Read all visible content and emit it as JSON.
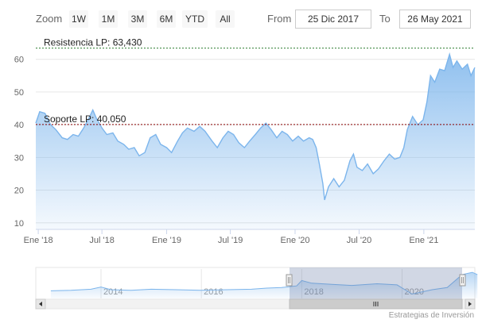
{
  "toolbar": {
    "zoom_label": "Zoom",
    "buttons": [
      "1W",
      "1M",
      "3M",
      "6M",
      "YTD",
      "All"
    ],
    "from_label": "From",
    "from_value": "25 Dic 2017",
    "to_label": "To",
    "to_value": "26 May 2021"
  },
  "credits": "Estrategias de Inversión",
  "colors": {
    "line": "#7cb5ec",
    "resistance": "#2e7d32",
    "support": "#8b0000",
    "navigator_mask": "#667aa6"
  },
  "navigator": {
    "year_labels": [
      "2014",
      "2016",
      "2018",
      "2020"
    ],
    "series": [
      [
        2013.0,
        24
      ],
      [
        2013.4,
        25
      ],
      [
        2013.8,
        27
      ],
      [
        2014.0,
        31
      ],
      [
        2014.2,
        26
      ],
      [
        2014.6,
        25
      ],
      [
        2015.0,
        27
      ],
      [
        2015.5,
        26
      ],
      [
        2016.0,
        25
      ],
      [
        2016.5,
        26
      ],
      [
        2017.0,
        27
      ],
      [
        2017.3,
        29
      ],
      [
        2017.6,
        30
      ],
      [
        2017.9,
        33
      ],
      [
        2018.0,
        43
      ],
      [
        2018.2,
        38
      ],
      [
        2018.6,
        36
      ],
      [
        2019.0,
        34
      ],
      [
        2019.5,
        37
      ],
      [
        2019.9,
        35
      ],
      [
        2020.2,
        18
      ],
      [
        2020.6,
        26
      ],
      [
        2020.9,
        30
      ],
      [
        2021.1,
        46
      ],
      [
        2021.2,
        54
      ],
      [
        2021.4,
        58
      ],
      [
        2021.5,
        54
      ]
    ]
  },
  "chart_data": {
    "type": "area",
    "title": "",
    "xlabel": "",
    "ylabel": "",
    "x_ticks": [
      "Ene '18",
      "Jul '18",
      "Ene '19",
      "Jul '19",
      "Ene '20",
      "Jul '20",
      "Ene '21"
    ],
    "y_ticks": [
      10,
      20,
      30,
      40,
      50,
      60
    ],
    "ylim": [
      8,
      66
    ],
    "xlim": [
      "2017-12-25",
      "2021-05-26"
    ],
    "grid": true,
    "plot_lines": [
      {
        "label": "Resistencia LP: 63,430",
        "value": 63.43,
        "color": "#2e7d32"
      },
      {
        "label": "Soporte LP: 40,050",
        "value": 40.05,
        "color": "#8b0000"
      }
    ],
    "series": [
      {
        "values": [
          [
            "2017-12-25",
            40.5
          ],
          [
            "2018-01-05",
            44
          ],
          [
            "2018-01-20",
            43.5
          ],
          [
            "2018-02-05",
            40
          ],
          [
            "2018-02-20",
            38.5
          ],
          [
            "2018-03-10",
            36
          ],
          [
            "2018-03-25",
            35.5
          ],
          [
            "2018-04-10",
            37
          ],
          [
            "2018-04-25",
            36.5
          ],
          [
            "2018-05-10",
            39
          ],
          [
            "2018-05-25",
            42
          ],
          [
            "2018-06-05",
            44.5
          ],
          [
            "2018-06-15",
            42
          ],
          [
            "2018-07-01",
            39
          ],
          [
            "2018-07-15",
            37
          ],
          [
            "2018-08-01",
            37.5
          ],
          [
            "2018-08-15",
            35
          ],
          [
            "2018-09-01",
            34
          ],
          [
            "2018-09-15",
            32.5
          ],
          [
            "2018-10-01",
            33
          ],
          [
            "2018-10-15",
            30.5
          ],
          [
            "2018-10-31",
            31.5
          ],
          [
            "2018-11-15",
            36
          ],
          [
            "2018-12-01",
            37
          ],
          [
            "2018-12-15",
            34
          ],
          [
            "2019-01-01",
            33
          ],
          [
            "2019-01-15",
            31.5
          ],
          [
            "2019-02-01",
            35
          ],
          [
            "2019-02-15",
            37.5
          ],
          [
            "2019-03-01",
            39
          ],
          [
            "2019-03-20",
            38
          ],
          [
            "2019-04-05",
            39.5
          ],
          [
            "2019-04-20",
            38
          ],
          [
            "2019-05-10",
            35
          ],
          [
            "2019-05-25",
            33
          ],
          [
            "2019-06-10",
            36
          ],
          [
            "2019-06-25",
            38
          ],
          [
            "2019-07-10",
            37
          ],
          [
            "2019-07-25",
            34.5
          ],
          [
            "2019-08-10",
            33
          ],
          [
            "2019-08-25",
            35
          ],
          [
            "2019-09-10",
            37
          ],
          [
            "2019-09-25",
            39
          ],
          [
            "2019-10-10",
            40.5
          ],
          [
            "2019-10-25",
            38.5
          ],
          [
            "2019-11-10",
            36
          ],
          [
            "2019-11-25",
            38
          ],
          [
            "2019-12-10",
            37
          ],
          [
            "2019-12-25",
            35
          ],
          [
            "2020-01-10",
            36.5
          ],
          [
            "2020-01-25",
            35
          ],
          [
            "2020-02-10",
            36
          ],
          [
            "2020-02-20",
            35.5
          ],
          [
            "2020-03-01",
            33
          ],
          [
            "2020-03-10",
            28
          ],
          [
            "2020-03-20",
            22
          ],
          [
            "2020-03-25",
            17
          ],
          [
            "2020-04-05",
            21
          ],
          [
            "2020-04-20",
            23.5
          ],
          [
            "2020-05-05",
            21
          ],
          [
            "2020-05-20",
            23
          ],
          [
            "2020-06-05",
            29
          ],
          [
            "2020-06-15",
            31
          ],
          [
            "2020-06-25",
            27
          ],
          [
            "2020-07-10",
            26
          ],
          [
            "2020-07-25",
            28
          ],
          [
            "2020-08-10",
            25
          ],
          [
            "2020-08-25",
            26.5
          ],
          [
            "2020-09-10",
            29
          ],
          [
            "2020-09-25",
            31
          ],
          [
            "2020-10-10",
            29.5
          ],
          [
            "2020-10-25",
            30
          ],
          [
            "2020-11-05",
            33
          ],
          [
            "2020-11-15",
            38.5
          ],
          [
            "2020-11-30",
            42.5
          ],
          [
            "2020-12-15",
            40
          ],
          [
            "2020-12-30",
            41.5
          ],
          [
            "2021-01-10",
            47
          ],
          [
            "2021-01-20",
            55
          ],
          [
            "2021-02-01",
            53
          ],
          [
            "2021-02-15",
            57
          ],
          [
            "2021-03-01",
            56.5
          ],
          [
            "2021-03-15",
            61.5
          ],
          [
            "2021-03-25",
            57.5
          ],
          [
            "2021-04-05",
            59.5
          ],
          [
            "2021-04-20",
            57
          ],
          [
            "2021-05-05",
            58.5
          ],
          [
            "2021-05-15",
            55
          ],
          [
            "2021-05-26",
            57.5
          ]
        ]
      }
    ]
  }
}
